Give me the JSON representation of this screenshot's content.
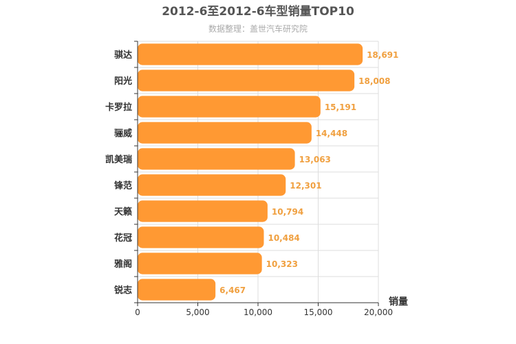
{
  "chart_data": {
    "type": "bar",
    "orientation": "horizontal",
    "title": "2012-6至2012-6车型销量TOP10",
    "subtitle": "数据整理：盖世汽车研究院",
    "xlabel": "销量",
    "ylabel": "",
    "categories": [
      "骐达",
      "阳光",
      "卡罗拉",
      "骊威",
      "凯美瑞",
      "锋范",
      "天籁",
      "花冠",
      "雅阁",
      "锐志"
    ],
    "values": [
      18691,
      18008,
      15191,
      14448,
      13063,
      12301,
      10794,
      10484,
      10323,
      6467
    ],
    "value_labels": [
      "18,691",
      "18,008",
      "15,191",
      "14,448",
      "13,063",
      "12,301",
      "10,794",
      "10,484",
      "10,323",
      "6,467"
    ],
    "xlim": [
      0,
      20000
    ],
    "xticks": [
      0,
      5000,
      10000,
      15000,
      20000
    ],
    "xtick_labels": [
      "0",
      "5,000",
      "10,000",
      "15,000",
      "20,000"
    ],
    "grid": true,
    "legend": "none",
    "colors": {
      "bar": "#ff9933",
      "value_label": "#f0a040",
      "grid": "#dddddd",
      "axis": "#333333"
    }
  }
}
